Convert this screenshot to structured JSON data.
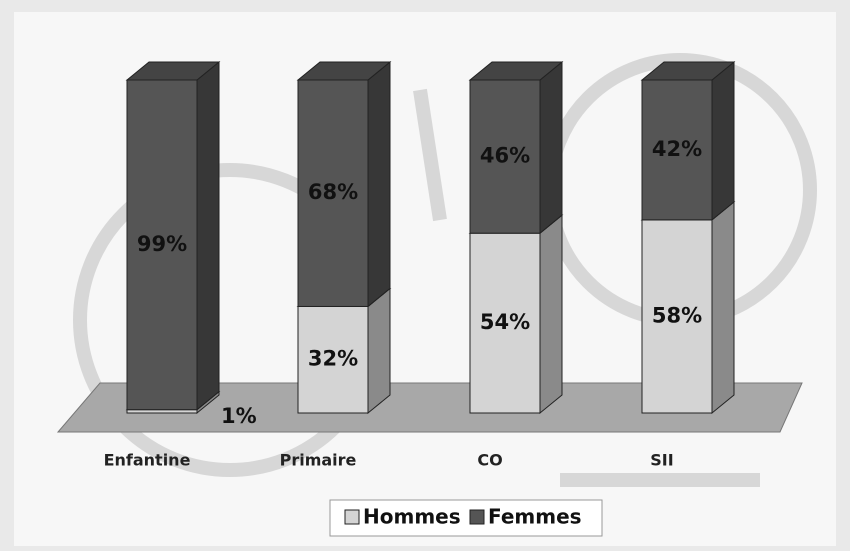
{
  "chart_data": {
    "type": "bar3d-stacked",
    "categories": [
      "Enfantine",
      "Primaire",
      "CO",
      "SII"
    ],
    "series": [
      {
        "name": "Hommes",
        "color": "#d4d4d4",
        "values": [
          1,
          32,
          54,
          58
        ],
        "value_labels": [
          "1%",
          "32%",
          "54%",
          "58%"
        ]
      },
      {
        "name": "Femmes",
        "color": "#555555",
        "values": [
          99,
          68,
          46,
          42
        ],
        "value_labels": [
          "99%",
          "68%",
          "46%",
          "42%"
        ]
      }
    ],
    "legend": "bottom"
  }
}
